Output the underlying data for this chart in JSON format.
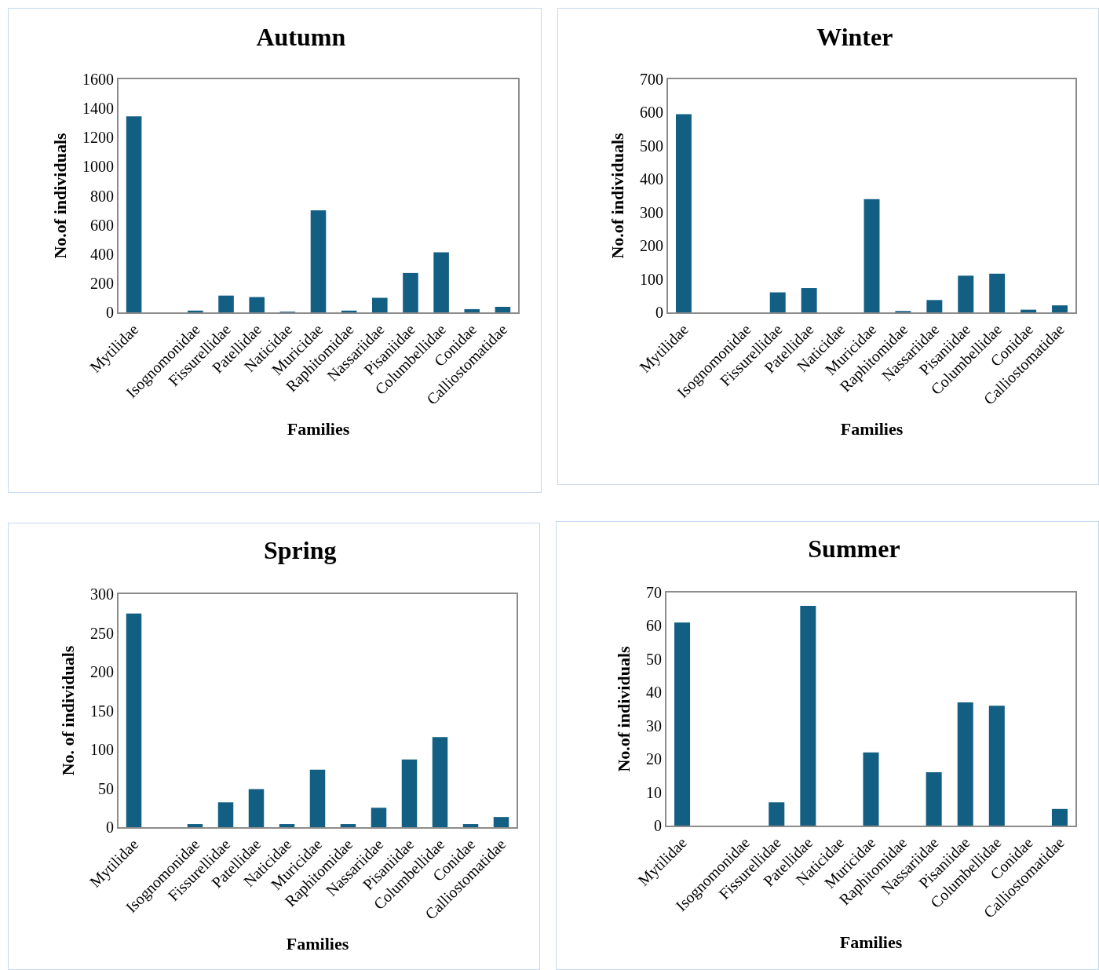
{
  "chart_data": [
    {
      "type": "bar",
      "title": "Autumn",
      "xlabel": "Families",
      "ylabel": "No.of individuals",
      "categories": [
        "Mytilidae",
        null,
        "Isognomonidae",
        "Fissurellidae",
        "Patellidae",
        "Naticidae",
        "Muricidae",
        "Raphitomidae",
        "Nassariidae",
        "Pisaniidae",
        "Columbellidae",
        "Conidae",
        "Calliostomatidae"
      ],
      "values": [
        1345,
        0,
        12,
        115,
        105,
        5,
        700,
        12,
        100,
        270,
        412,
        22,
        38
      ],
      "color": "#135f84",
      "ylim": [
        0,
        1600
      ],
      "yticks": [
        0,
        200,
        400,
        600,
        800,
        1000,
        1200,
        1400,
        1600
      ]
    },
    {
      "type": "bar",
      "title": "Winter",
      "xlabel": "Families",
      "ylabel": "No.of individuals",
      "categories": [
        "Mytilidae",
        null,
        "Isognomonidae",
        "Fissurellidae",
        "Patellidae",
        "Naticidae",
        "Muricidae",
        "Raphitomidae",
        "Nassariidae",
        "Pisaniidae",
        "Columbellidae",
        "Conidae",
        "Calliostomatidae"
      ],
      "values": [
        595,
        0,
        0,
        60,
        73,
        0,
        340,
        4,
        37,
        110,
        116,
        8,
        21
      ],
      "color": "#135f84",
      "ylim": [
        0,
        700
      ],
      "yticks": [
        0,
        100,
        200,
        300,
        400,
        500,
        600,
        700
      ]
    },
    {
      "type": "bar",
      "title": "Spring",
      "xlabel": "Families",
      "ylabel": "No. of individuals",
      "categories": [
        "Mytilidae",
        null,
        "Isognomonidae",
        "Fissurellidae",
        "Patellidae",
        "Naticidae",
        "Muricidae",
        "Raphitomidae",
        "Nassariidae",
        "Pisaniidae",
        "Columbellidae",
        "Conidae",
        "Calliostomatidae"
      ],
      "values": [
        275,
        0,
        4,
        32,
        49,
        4,
        74,
        4,
        25,
        87,
        116,
        4,
        13
      ],
      "color": "#135f84",
      "ylim": [
        0,
        300
      ],
      "yticks": [
        0,
        50,
        100,
        150,
        200,
        250,
        300
      ]
    },
    {
      "type": "bar",
      "title": "Summer",
      "xlabel": "Families",
      "ylabel": "No.of individuals",
      "categories": [
        "Mytilidae",
        null,
        "Isognomonidae",
        "Fissurellidae",
        "Patellidae",
        "Naticidae",
        "Muricidae",
        "Raphitomidae",
        "Nassariidae",
        "Pisaniidae",
        "Columbellidae",
        "Conidae",
        "Calliostomatidae"
      ],
      "values": [
        61,
        0,
        0,
        7,
        66,
        0,
        22,
        0,
        16,
        37,
        36,
        0,
        5
      ],
      "color": "#135f84",
      "ylim": [
        0,
        70
      ],
      "yticks": [
        0,
        10,
        20,
        30,
        40,
        50,
        60,
        70
      ]
    }
  ]
}
